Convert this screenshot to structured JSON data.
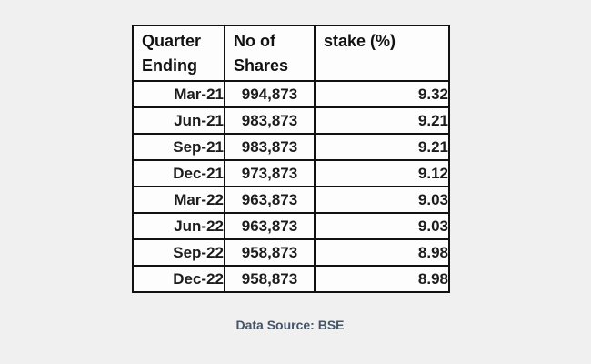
{
  "page": {
    "background_color": "#f0f0f0",
    "cell_background_color": "#fdfdfd",
    "border_color": "#111111",
    "caption_color": "#44546a"
  },
  "table": {
    "headers": [
      {
        "label": "Quarter\nEnding"
      },
      {
        "label": "No of\nShares"
      },
      {
        "label": "stake (%)"
      }
    ],
    "rows": [
      {
        "quarter": "Mar-21",
        "shares": "994,873",
        "stake": "9.32"
      },
      {
        "quarter": "Jun-21",
        "shares": "983,873",
        "stake": "9.21"
      },
      {
        "quarter": "Sep-21",
        "shares": "983,873",
        "stake": "9.21"
      },
      {
        "quarter": "Dec-21",
        "shares": "973,873",
        "stake": "9.12"
      },
      {
        "quarter": "Mar-22",
        "shares": "963,873",
        "stake": "9.03"
      },
      {
        "quarter": "Jun-22",
        "shares": "963,873",
        "stake": "9.03"
      },
      {
        "quarter": "Sep-22",
        "shares": "958,873",
        "stake": "8.98"
      },
      {
        "quarter": "Dec-22",
        "shares": "958,873",
        "stake": "8.98"
      }
    ]
  },
  "caption": {
    "text": "Data Source: BSE"
  },
  "chart_data": {
    "type": "table",
    "title": "",
    "columns": [
      "Quarter Ending",
      "No of Shares",
      "stake (%)"
    ],
    "rows": [
      [
        "Mar-21",
        994873,
        9.32
      ],
      [
        "Jun-21",
        983873,
        9.21
      ],
      [
        "Sep-21",
        983873,
        9.21
      ],
      [
        "Dec-21",
        973873,
        9.12
      ],
      [
        "Mar-22",
        963873,
        9.03
      ],
      [
        "Jun-22",
        963873,
        9.03
      ],
      [
        "Sep-22",
        958873,
        8.98
      ],
      [
        "Dec-22",
        958873,
        8.98
      ]
    ],
    "source": "Data Source: BSE"
  }
}
